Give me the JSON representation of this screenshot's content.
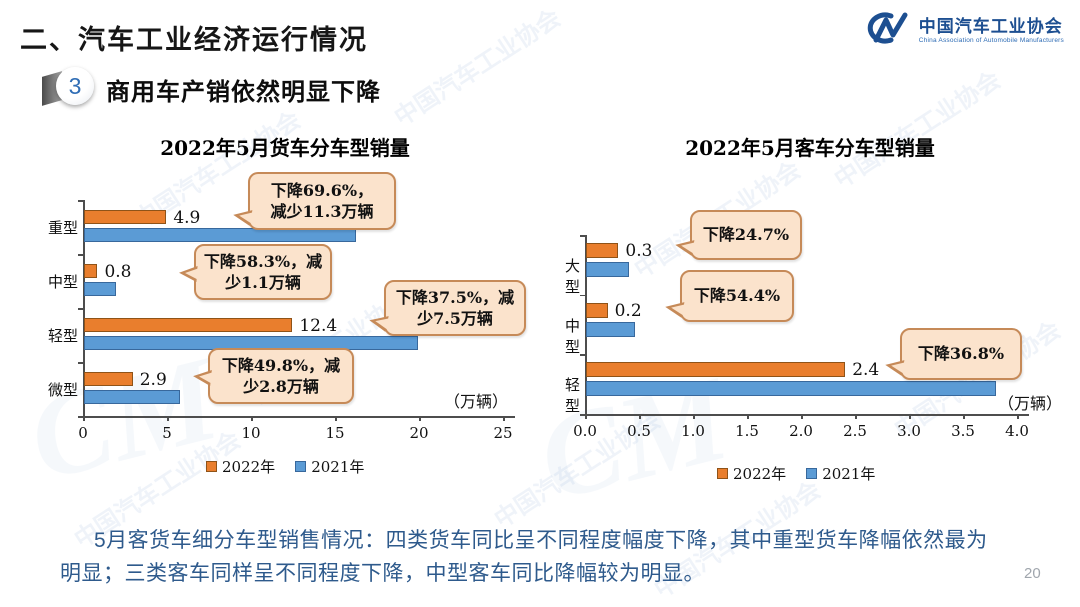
{
  "page": {
    "title": "二、汽车工业经济运行情况",
    "section_number": "3",
    "section_title": "商用车产销依然明显下降",
    "footer_lines": [
      "5月客货车细分车型销售情况：四类货车同比呈不同程度幅度下降，其中重型货车降幅依然最为",
      "明显；三类客车同样呈不同程度下降，中型客车同比降幅较为明显。"
    ],
    "page_number": "20"
  },
  "logo": {
    "mark": "CM",
    "name_cn": "中国汽车工业协会",
    "name_en": "China Association of Automobile Manufacturers"
  },
  "watermark": {
    "text": "中国汽车工业协会"
  },
  "colors": {
    "orange": "#E97E2D",
    "orange_border": "#8f5318",
    "blue": "#5B9BD5",
    "blue_border": "#38689c",
    "callout_bg": "#FBE3CC",
    "callout_border": "#C68A58",
    "axis": "#4d4d4d",
    "footer_text": "#2e5a8c",
    "logo_blue": "#1d4f91"
  },
  "chart_data": [
    {
      "id": "truck",
      "type": "bar",
      "orientation": "horizontal",
      "title": "2022年5月货车分车型销量",
      "unit_label": "（万辆）",
      "categories": [
        "重型",
        "中型",
        "轻型",
        "微型"
      ],
      "series": [
        {
          "name": "2022年",
          "color_key": "orange",
          "values": [
            4.9,
            0.8,
            12.4,
            2.9
          ],
          "labels": [
            "4.9",
            "0.8",
            "12.4",
            "2.9"
          ]
        },
        {
          "name": "2021年",
          "color_key": "blue",
          "values": [
            16.2,
            1.9,
            19.9,
            5.7
          ]
        }
      ],
      "xlim": [
        0,
        25
      ],
      "ticks": [
        "0",
        "5",
        "10",
        "15",
        "20",
        "25"
      ],
      "legend_position": "bottom-center",
      "callouts": [
        {
          "category": "重型",
          "text": "下降69.6%，\n减少11.3万辆"
        },
        {
          "category": "中型",
          "text": "下降58.3%，减\n少1.1万辆"
        },
        {
          "category": "轻型",
          "text": "下降37.5%，减\n少7.5万辆"
        },
        {
          "category": "微型",
          "text": "下降49.8%，减\n少2.8万辆"
        }
      ]
    },
    {
      "id": "bus",
      "type": "bar",
      "orientation": "horizontal",
      "title": "2022年5月客车分车型销量",
      "unit_label": "（万辆）",
      "categories": [
        "大型",
        "中型",
        "轻型"
      ],
      "series": [
        {
          "name": "2022年",
          "color_key": "orange",
          "values": [
            0.3,
            0.2,
            2.4
          ],
          "labels": [
            "0.3",
            "0.2",
            "2.4"
          ]
        },
        {
          "name": "2021年",
          "color_key": "blue",
          "values": [
            0.4,
            0.45,
            3.8
          ]
        }
      ],
      "xlim": [
        0,
        4
      ],
      "ticks": [
        "0.0",
        "0.5",
        "1.0",
        "1.5",
        "2.0",
        "2.5",
        "3.0",
        "3.5",
        "4.0"
      ],
      "legend_position": "bottom-center",
      "callouts": [
        {
          "category": "大型",
          "text": "下降24.7%"
        },
        {
          "category": "中型",
          "text": "下降54.4%"
        },
        {
          "category": "轻型",
          "text": "下降36.8%"
        }
      ]
    }
  ]
}
